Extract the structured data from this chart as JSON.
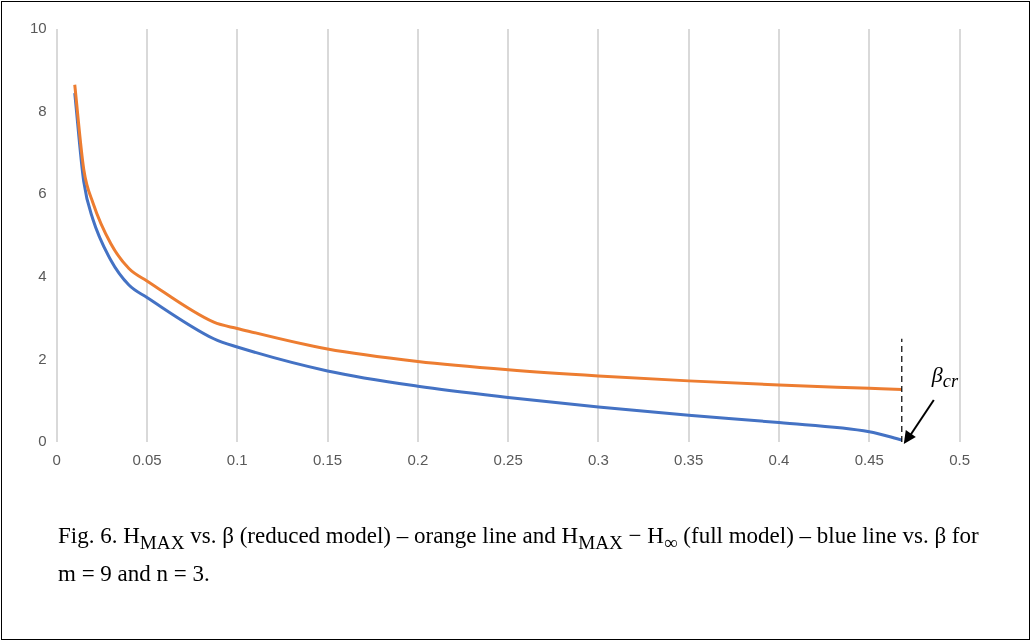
{
  "chart_data": {
    "type": "line",
    "x": [
      0.01,
      0.015,
      0.02,
      0.03,
      0.04,
      0.05,
      0.087,
      0.1,
      0.15,
      0.2,
      0.25,
      0.3,
      0.35,
      0.4,
      0.45,
      0.468
    ],
    "series": [
      {
        "color": "#ed7d31",
        "values": [
          8.65,
          6.6,
          5.8,
          4.8,
          4.2,
          3.9,
          2.9,
          2.75,
          2.25,
          1.95,
          1.75,
          1.6,
          1.48,
          1.38,
          1.3,
          1.27
        ]
      },
      {
        "color": "#4472c4",
        "values": [
          8.45,
          6.3,
          5.4,
          4.4,
          3.8,
          3.5,
          2.5,
          2.3,
          1.72,
          1.35,
          1.08,
          0.85,
          0.65,
          0.47,
          0.25,
          0.05
        ]
      }
    ],
    "xlim": [
      0,
      0.5
    ],
    "xticks": [
      0,
      0.05,
      0.1,
      0.15,
      0.2,
      0.25,
      0.3,
      0.35,
      0.4,
      0.45,
      0.5
    ],
    "ylim": [
      0,
      10
    ],
    "yticks": [
      0,
      2,
      4,
      6,
      8,
      10
    ],
    "grid": "x",
    "legend": false,
    "marker": "none",
    "line_style": "solid",
    "ref_lines": [
      {
        "axis": "x",
        "value": 0.468,
        "label": "β$_{cr}$",
        "line_style": "dashed",
        "color": "#000000"
      }
    ],
    "annotations": [
      "Fig. 6. H$_{MAX}$ vs. β (reduced model) – orange line and H$_{MAX}$ − H$_{∞}$ (full model) – blue line vs. β for m = 9 and n = 3."
    ]
  }
}
